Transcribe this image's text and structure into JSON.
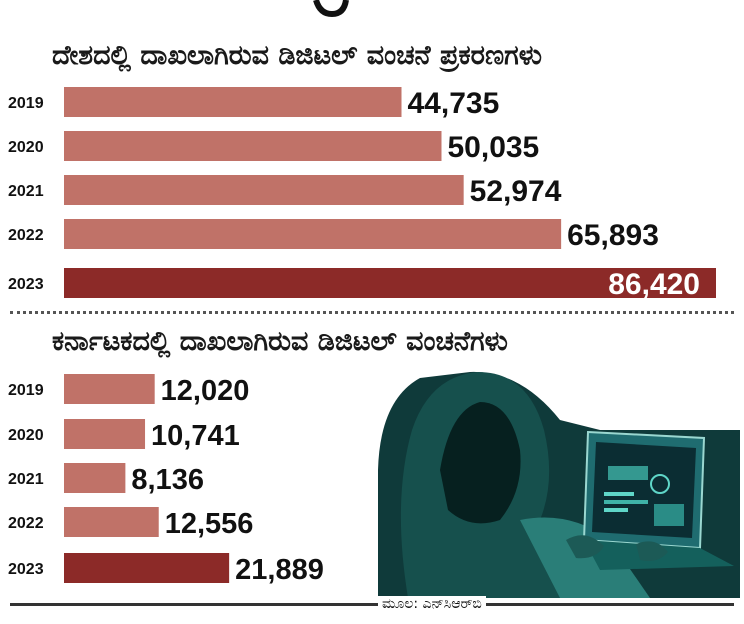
{
  "chart_data": [
    {
      "type": "bar",
      "orientation": "horizontal",
      "title": "ದೇಶದಲ್ಲಿ ದಾಖಲಾಗಿರುವ ಡಿಜಿಟಲ್ ವಂಚನೆ ಪ್ರಕರಣಗಳು",
      "categories": [
        "2019",
        "2020",
        "2021",
        "2022",
        "2023"
      ],
      "values": [
        44735,
        50035,
        52974,
        65893,
        86420
      ],
      "value_labels": [
        "44,735",
        "50,035",
        "52,974",
        "65,893",
        "86,420"
      ],
      "bar_colors": [
        "#c07268",
        "#c07268",
        "#c07268",
        "#c07268",
        "#8c2a28"
      ],
      "xlim": [
        0,
        86420
      ]
    },
    {
      "type": "bar",
      "orientation": "horizontal",
      "title": "ಕರ್ನಾಟಕದಲ್ಲಿ ದಾಖಲಾಗಿರುವ ಡಿಜಿಟಲ್ ವಂಚನೆಗಳು",
      "categories": [
        "2019",
        "2020",
        "2021",
        "2022",
        "2023"
      ],
      "values": [
        12020,
        10741,
        8136,
        12556,
        21889
      ],
      "value_labels": [
        "12,020",
        "10,741",
        "8,136",
        "12,556",
        "21,889"
      ],
      "bar_colors": [
        "#c07268",
        "#c07268",
        "#c07268",
        "#c07268",
        "#8c2a28"
      ],
      "xlim": [
        0,
        86420
      ]
    }
  ],
  "source": "ಮೂಲ: ಎನ್‌ಸಿಆರ್‌ಬಿ",
  "image": "hooded-hacker-with-laptop",
  "colors": {
    "bar": "#c07268",
    "highlight": "#8c2a28",
    "ink": "#111111"
  }
}
